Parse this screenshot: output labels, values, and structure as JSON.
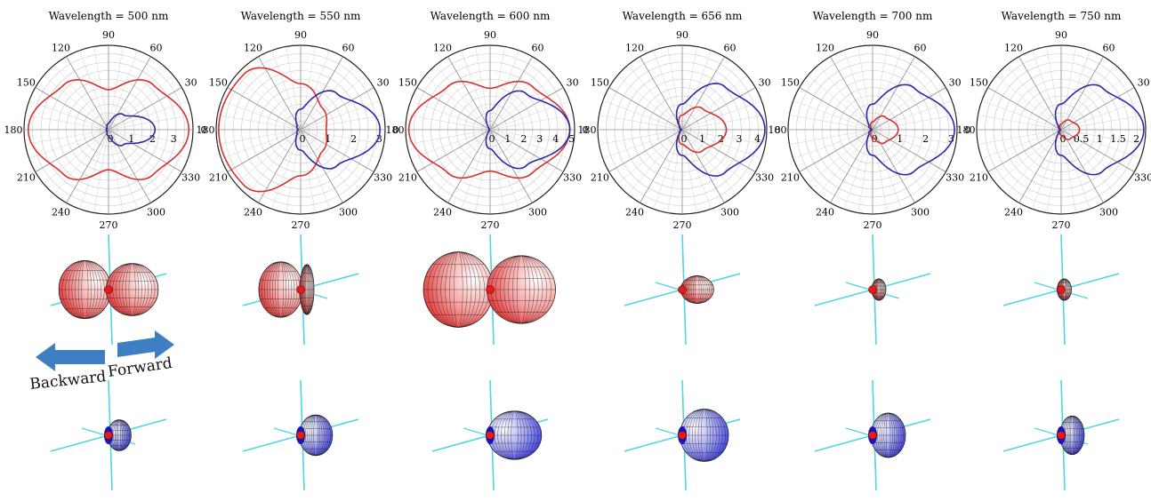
{
  "figure": {
    "panels": [
      {
        "title": "Wavelength = 500 nm",
        "radial_ticks": [
          "0",
          "1",
          "2",
          "3"
        ],
        "radial_max": 4
      },
      {
        "title": "Wavelength = 550 nm",
        "radial_ticks": [
          "0",
          "1",
          "2",
          "3"
        ],
        "radial_max": 3.3
      },
      {
        "title": "Wavelength = 600 nm",
        "radial_ticks": [
          "0",
          "1",
          "2",
          "3",
          "4",
          "5"
        ],
        "radial_max": 5.3
      },
      {
        "title": "Wavelength = 656 nm",
        "radial_ticks": [
          "0",
          "1",
          "2",
          "3",
          "4"
        ],
        "radial_max": 4.6
      },
      {
        "title": "Wavelength = 700 nm",
        "radial_ticks": [
          "0",
          "1",
          "2",
          "3"
        ],
        "radial_max": 3.3
      },
      {
        "title": "Wavelength = 750 nm",
        "radial_ticks": [
          "0",
          "0.5",
          "1",
          "1.5",
          "2"
        ],
        "radial_max": 2.3
      }
    ],
    "angle_ticks": [
      "0",
      "30",
      "60",
      "90",
      "120",
      "150",
      "180",
      "210",
      "240",
      "270",
      "300",
      "330"
    ],
    "arrows": {
      "backward_label": "Backward",
      "forward_label": "Forward"
    },
    "colors": {
      "red_series": "#d9302f",
      "blue_series": "#2a2aa8",
      "grid": "#bfbfbf",
      "axes_3d": "#4fd6e6",
      "arrow": "#3d7fc2"
    }
  },
  "chart_data": [
    {
      "type": "polar",
      "title": "Wavelength = 500 nm",
      "rlim": [
        0,
        4
      ],
      "series": [
        {
          "color": "#d9302f",
          "values_vs_angle": {
            "0": 3.8,
            "45": 3.0,
            "90": 1.9,
            "135": 3.0,
            "180": 3.8
          }
        },
        {
          "color": "#2a2aa8",
          "values_vs_angle": {
            "0": 2.2,
            "45": 1.0,
            "90": 0.3,
            "135": 0.1,
            "180": 0.1
          }
        }
      ]
    },
    {
      "type": "polar",
      "title": "Wavelength = 550 nm",
      "rlim": [
        0,
        3.3
      ],
      "series": [
        {
          "color": "#d9302f",
          "values_vs_angle": {
            "0": 1.0,
            "45": 1.2,
            "90": 1.8,
            "135": 3.1,
            "180": 3.2
          }
        },
        {
          "color": "#2a2aa8",
          "values_vs_angle": {
            "0": 3.1,
            "45": 2.0,
            "90": 0.8,
            "135": 0.2,
            "180": 0.1
          }
        }
      ]
    },
    {
      "type": "polar",
      "title": "Wavelength = 600 nm",
      "rlim": [
        0,
        5.3
      ],
      "series": [
        {
          "color": "#d9302f",
          "values_vs_angle": {
            "0": 5.0,
            "45": 3.8,
            "90": 2.6,
            "135": 3.8,
            "180": 5.1
          }
        },
        {
          "color": "#2a2aa8",
          "values_vs_angle": {
            "0": 5.0,
            "45": 3.2,
            "90": 1.2,
            "135": 0.1,
            "180": 0.0
          }
        }
      ]
    },
    {
      "type": "polar",
      "title": "Wavelength = 656 nm",
      "rlim": [
        0,
        4.6
      ],
      "series": [
        {
          "color": "#d9302f",
          "values_vs_angle": {
            "0": 2.4,
            "45": 1.6,
            "90": 0.8,
            "135": 0.2,
            "180": 0.0
          }
        },
        {
          "color": "#2a2aa8",
          "values_vs_angle": {
            "0": 4.5,
            "45": 3.3,
            "90": 1.4,
            "135": 0.2,
            "180": 0.0
          }
        }
      ]
    },
    {
      "type": "polar",
      "title": "Wavelength = 700 nm",
      "rlim": [
        0,
        3.3
      ],
      "series": [
        {
          "color": "#d9302f",
          "values_vs_angle": {
            "0": 1.0,
            "45": 0.7,
            "90": 0.3,
            "135": 0.1,
            "180": 0.0
          }
        },
        {
          "color": "#2a2aa8",
          "values_vs_angle": {
            "0": 3.2,
            "45": 2.3,
            "90": 1.0,
            "135": 0.2,
            "180": 0.0
          }
        }
      ]
    },
    {
      "type": "polar",
      "title": "Wavelength = 750 nm",
      "rlim": [
        0,
        2.3
      ],
      "series": [
        {
          "color": "#d9302f",
          "values_vs_angle": {
            "0": 0.5,
            "45": 0.35,
            "90": 0.15,
            "135": 0.05,
            "180": 0.0
          }
        },
        {
          "color": "#2a2aa8",
          "values_vs_angle": {
            "0": 2.25,
            "45": 1.6,
            "90": 0.7,
            "135": 0.1,
            "180": 0.0
          }
        }
      ]
    }
  ]
}
